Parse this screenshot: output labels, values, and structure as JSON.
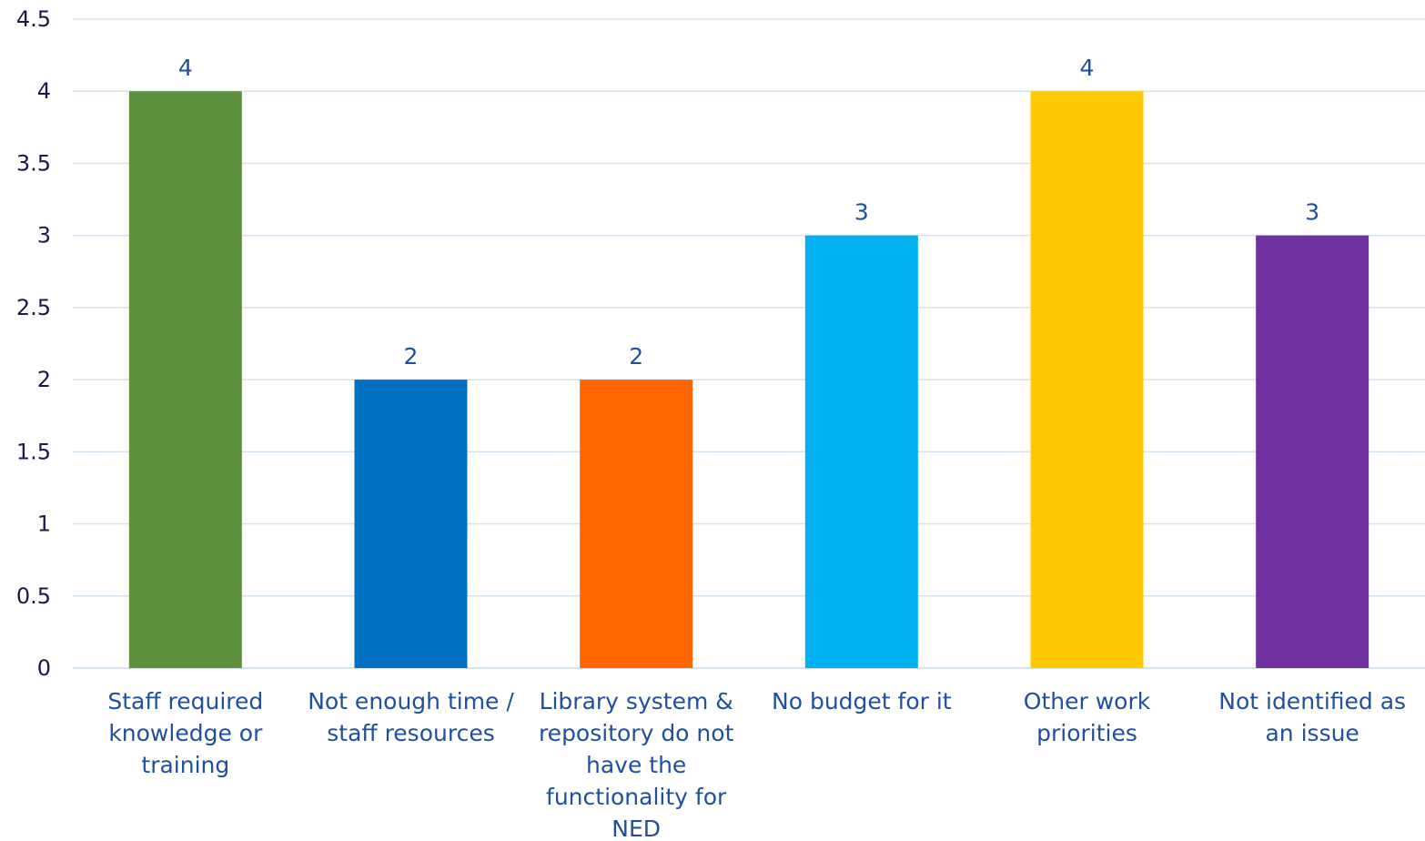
{
  "chart_data": {
    "type": "bar",
    "title": "",
    "xlabel": "",
    "ylabel": "",
    "ylim": [
      0,
      4.5
    ],
    "yticks": [
      "0",
      "0.5",
      "1",
      "1.5",
      "2",
      "2.5",
      "3",
      "3.5",
      "4",
      "4.5"
    ],
    "grid": true,
    "legend": "none",
    "categories": [
      "Staff required knowledge or training",
      "Not enough time / staff resources",
      "Library system & repository do not have the functionality for NED",
      "No budget for it",
      "Other work priorities",
      "Not identified as an issue"
    ],
    "category_lines": [
      [
        "Staff required",
        "knowledge or",
        "training"
      ],
      [
        "Not enough time /",
        "staff resources"
      ],
      [
        "Library system &",
        "repository do not",
        "have the",
        "functionality for",
        "NED"
      ],
      [
        "No budget for it"
      ],
      [
        "Other work",
        "priorities"
      ],
      [
        "Not identified as",
        "an issue"
      ]
    ],
    "values": [
      4,
      2,
      2,
      3,
      4,
      3
    ],
    "data_labels": [
      "4",
      "2",
      "2",
      "3",
      "4",
      "3"
    ],
    "bar_colors": [
      "#5e923d",
      "#0070c0",
      "#ff6600",
      "#00b0f0",
      "#ffc800",
      "#7030a0"
    ]
  }
}
